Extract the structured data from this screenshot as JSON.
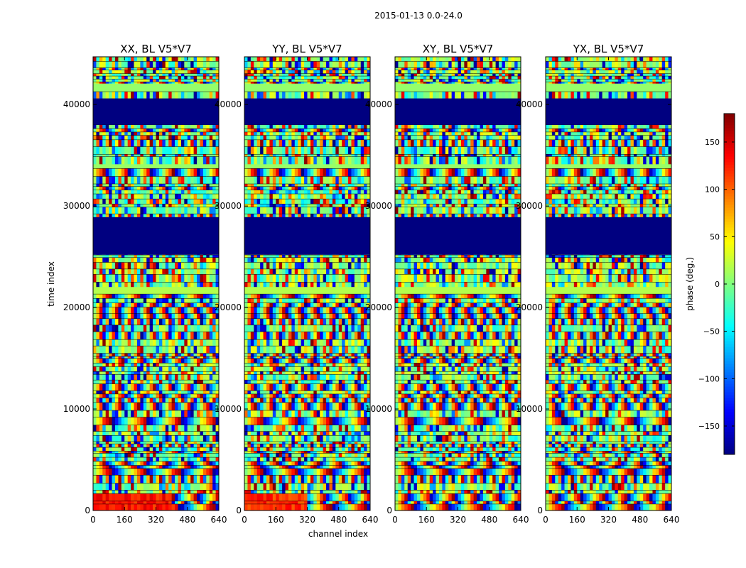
{
  "chart_data": {
    "type": "heatmap",
    "suptitle": "2015-01-13 0.0-24.0",
    "xlabel": "channel index",
    "ylabel": "time index",
    "xlim": [
      0,
      640
    ],
    "ylim": [
      0,
      44700
    ],
    "x_ticks": [
      0,
      160,
      320,
      480,
      640
    ],
    "y_ticks": [
      0,
      10000,
      20000,
      30000,
      40000
    ],
    "panels": [
      {
        "title": "XX, BL V5*V7",
        "pol": "XX",
        "low_phase_region": {
          "time_range": [
            0,
            1500
          ],
          "channel_range": [
            0,
            400
          ],
          "phase_deg": 130
        }
      },
      {
        "title": "YY, BL V5*V7",
        "pol": "YY",
        "low_phase_region": {
          "time_range": [
            0,
            1500
          ],
          "channel_range": [
            0,
            320
          ],
          "phase_deg": 120
        }
      },
      {
        "title": "XY, BL V5*V7",
        "pol": "XY"
      },
      {
        "title": "YX, BL V5*V7",
        "pol": "YX"
      }
    ],
    "flagged_time_ranges": [
      [
        25200,
        28900
      ],
      [
        38000,
        40600
      ]
    ],
    "colorbar": {
      "label": "phase (deg.)",
      "range": [
        -180,
        180
      ],
      "ticks": [
        150,
        100,
        50,
        0,
        -50,
        -100,
        -150
      ],
      "tick_labels": [
        "150",
        "100",
        "50",
        "0",
        "−50",
        "−100",
        "−150"
      ],
      "colormap": "jet"
    }
  }
}
